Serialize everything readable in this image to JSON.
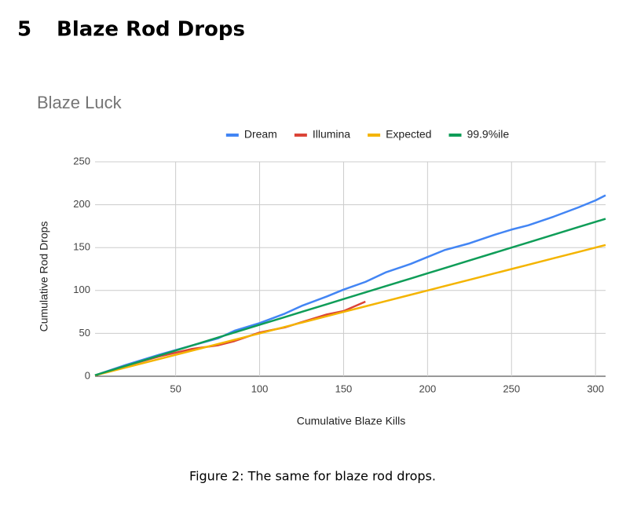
{
  "section": {
    "number": "5",
    "title": "Blaze Rod Drops"
  },
  "chart_data": {
    "type": "line",
    "title": "Blaze Luck",
    "x_label": "Cumulative Blaze Kills",
    "y_label": "Cumulative Rod Drops",
    "x": [
      2,
      20,
      40,
      60,
      75,
      85,
      100,
      115,
      125,
      140,
      150,
      163,
      175,
      190,
      200,
      210,
      225,
      240,
      250,
      260,
      275,
      290,
      300,
      306
    ],
    "series": [
      {
        "name": "Dream",
        "color": "#4285f4",
        "values": [
          1,
          13,
          25,
          36,
          44,
          53,
          62,
          73,
          82,
          93,
          101,
          110,
          121,
          131,
          139,
          147,
          155,
          165,
          171,
          176,
          186,
          197,
          205,
          211
        ]
      },
      {
        "name": "Illumina",
        "color": "#db4437",
        "values": [
          1,
          12,
          23,
          32,
          36,
          41,
          51,
          57,
          63,
          72,
          76,
          87,
          null,
          null,
          null,
          null,
          null,
          null,
          null,
          null,
          null,
          null,
          null,
          null
        ]
      },
      {
        "name": "Expected",
        "color": "#f4b400",
        "values": [
          1,
          10,
          20,
          30,
          37.5,
          42.5,
          50,
          57.5,
          62.5,
          70,
          75,
          81.5,
          87.5,
          95,
          100,
          105,
          112.5,
          120,
          125,
          130,
          137.5,
          145,
          150,
          153
        ]
      },
      {
        "name": "99.9%ile",
        "color": "#0f9d58",
        "values": [
          1.2,
          12,
          24,
          36,
          45,
          51,
          60,
          69,
          75,
          84,
          90,
          97.8,
          105,
          114,
          120,
          126,
          135,
          144,
          150,
          156,
          165,
          174,
          180,
          183.6
        ]
      }
    ],
    "xlim": [
      2,
      306
    ],
    "ylim": [
      0,
      250
    ],
    "xticks": [
      50,
      100,
      150,
      200,
      250,
      300
    ],
    "yticks": [
      0,
      50,
      100,
      150,
      200,
      250
    ],
    "grid": true,
    "legend": "top"
  },
  "caption": "Figure 2: The same for blaze rod drops."
}
